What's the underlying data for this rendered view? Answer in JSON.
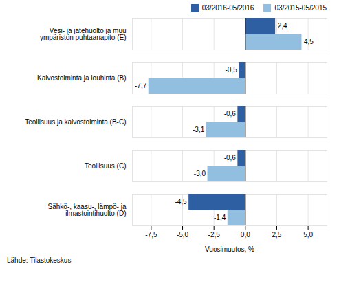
{
  "chart_data": {
    "type": "bar",
    "orientation": "horizontal",
    "categories": [
      "Sähkö-, kaasu-, lämpö- ja\nilmastointihuolto (D)",
      "Teollisuus (C)",
      "Teollisuus ja kaivostoiminta (B-C)",
      "Kaivostoiminta ja louhinta (B)",
      "Vesi- ja jätehuolto ja muu\nympäristön puhtaanapito (E)"
    ],
    "series": [
      {
        "name": "03/2016-05/2016",
        "color": "#2E5FA3",
        "values": [
          -4.5,
          -0.6,
          -0.6,
          -0.5,
          2.4
        ],
        "value_labels": [
          "-4,5",
          "-0,6",
          "-0,6",
          "-0,5",
          "2,4"
        ]
      },
      {
        "name": "03/2015-05/2015",
        "color": "#92BEE0",
        "values": [
          -1.4,
          -3.0,
          -3.1,
          -7.7,
          4.5
        ],
        "value_labels": [
          "-1,4",
          "-3,0",
          "-3,1",
          "-7,7",
          "4,5"
        ]
      }
    ],
    "xlabel": "Vuosimuutos, %",
    "xlim": [
      -9.0,
      6.5
    ],
    "xticks": [
      {
        "value": -7.5,
        "label": "-7,5"
      },
      {
        "value": -5.0,
        "label": "-5,0"
      },
      {
        "value": -2.5,
        "label": "-2,5"
      },
      {
        "value": 0.0,
        "label": "0,0"
      },
      {
        "value": 2.5,
        "label": "2,5"
      },
      {
        "value": 5.0,
        "label": "5,0"
      }
    ],
    "grid": true,
    "legend": "upper right",
    "data_labels": true,
    "annotations": [
      "Lähde: Tilastokeskus"
    ]
  }
}
